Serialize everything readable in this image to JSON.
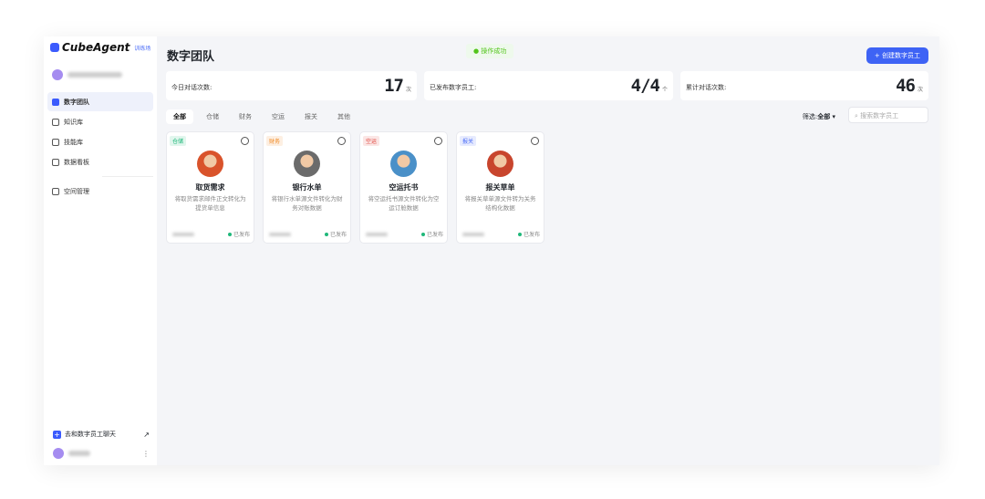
{
  "sidebar": {
    "brand": "CubeAgent",
    "brand_tag": "训练场",
    "items": [
      {
        "label": "数字团队",
        "icon": "team-icon",
        "active": true
      },
      {
        "label": "知识库",
        "icon": "book-icon"
      },
      {
        "label": "技能库",
        "icon": "wrench-icon"
      },
      {
        "label": "数据看板",
        "icon": "dashboard-icon"
      },
      {
        "label": "空间管理",
        "icon": "user-icon"
      }
    ],
    "chat_label": "去和数字员工聊天"
  },
  "header": {
    "title": "数字团队",
    "toast": "操作成功",
    "create_label": "+ 创建数字员工"
  },
  "stats": [
    {
      "label": "今日对话次数:",
      "value": "17",
      "unit": "次"
    },
    {
      "label": "已发布数字员工:",
      "value": "4/4",
      "unit": "个"
    },
    {
      "label": "累计对话次数:",
      "value": "46",
      "unit": "次"
    }
  ],
  "tabs": [
    "全部",
    "仓储",
    "财务",
    "空运",
    "报关",
    "其他"
  ],
  "filter": {
    "label": "筛选:",
    "value": "全部"
  },
  "search": {
    "placeholder": "搜索数字员工"
  },
  "cards": [
    {
      "tag": "仓储",
      "tag_color": "#1fb87a",
      "name": "取货需求",
      "desc": "将取货需求邮件正文转化为提货单信息",
      "status": "已发布",
      "avatar_color": "#d9532b"
    },
    {
      "tag": "财务",
      "tag_color": "#f08a24",
      "name": "银行水单",
      "desc": "将银行水单源文件转化为财务对账数据",
      "status": "已发布",
      "avatar_color": "#6b6b6b"
    },
    {
      "tag": "空运",
      "tag_color": "#e0443c",
      "name": "空运托书",
      "desc": "将空运托书源文件转化为空运订舱数据",
      "status": "已发布",
      "avatar_color": "#4a90c8"
    },
    {
      "tag": "报关",
      "tag_color": "#4a6cf7",
      "name": "报关草单",
      "desc": "将报关草单源文件转为关务结构化数据",
      "status": "已发布",
      "avatar_color": "#c8452d"
    }
  ]
}
